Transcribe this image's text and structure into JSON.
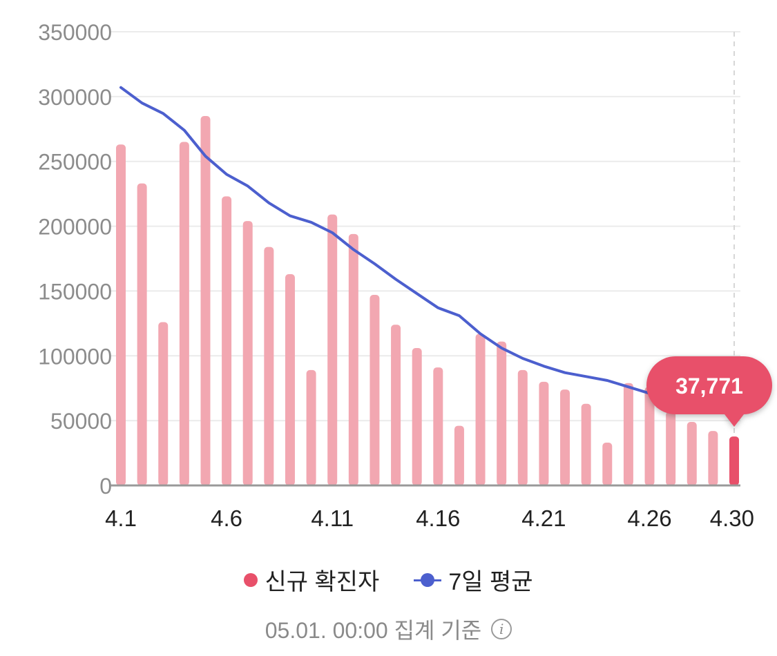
{
  "chart_data": {
    "type": "bar",
    "x": [
      "4.1",
      "4.2",
      "4.3",
      "4.4",
      "4.5",
      "4.6",
      "4.7",
      "4.8",
      "4.9",
      "4.10",
      "4.11",
      "4.12",
      "4.13",
      "4.14",
      "4.15",
      "4.16",
      "4.17",
      "4.18",
      "4.19",
      "4.20",
      "4.21",
      "4.22",
      "4.23",
      "4.24",
      "4.25",
      "4.26",
      "4.27",
      "4.28",
      "4.29",
      "4.30"
    ],
    "xticks": [
      "4.1",
      "4.6",
      "4.11",
      "4.16",
      "4.21",
      "4.26",
      "4.30"
    ],
    "series": [
      {
        "name": "신규 확진자",
        "type": "bar",
        "color": "#f2a7b1",
        "highlight_color": "#e8506a",
        "values": [
          263000,
          233000,
          126000,
          265000,
          285000,
          223000,
          204000,
          184000,
          163000,
          89000,
          209000,
          194000,
          147000,
          124000,
          106000,
          91000,
          46000,
          117000,
          111000,
          89000,
          80000,
          74000,
          63000,
          33000,
          79000,
          76000,
          57000,
          49000,
          42000,
          37771
        ]
      },
      {
        "name": "7일 평균",
        "type": "line",
        "color": "#4c5fce",
        "values": [
          307000,
          295000,
          287000,
          274000,
          254000,
          240000,
          231000,
          218000,
          208000,
          203000,
          195000,
          182000,
          171000,
          159000,
          148000,
          137000,
          131000,
          117000,
          106000,
          98000,
          92000,
          87000,
          84000,
          81000,
          76000,
          71000,
          null,
          null,
          null,
          null
        ]
      }
    ],
    "ylim": [
      0,
      350000
    ],
    "yticks": [
      0,
      50000,
      100000,
      150000,
      200000,
      250000,
      300000,
      350000
    ],
    "tooltip": {
      "index": 29,
      "text": "37,771"
    },
    "grid": true,
    "legend_position": "bottom"
  },
  "legend": {
    "new_cases_label": "신규 확진자",
    "avg_label": "7일 평균"
  },
  "footer": {
    "text": "05.01. 00:00 집계 기준",
    "info_icon_glyph": "i"
  },
  "colors": {
    "bar": "#f2a7b1",
    "bar_highlight": "#e8506a",
    "line": "#4c5fce",
    "tooltip_bg": "#e8506a"
  }
}
